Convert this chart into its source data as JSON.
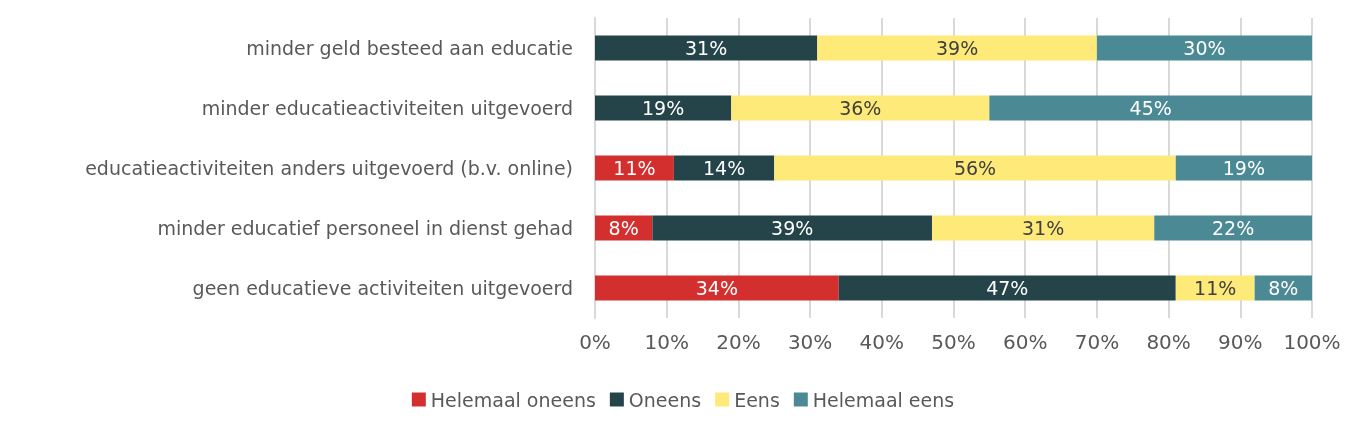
{
  "chart_data": {
    "type": "bar",
    "orientation": "horizontal",
    "stacked": true,
    "categories": [
      "minder geld besteed aan educatie",
      "minder educatieactiviteiten uitgevoerd",
      "educatieactiviteiten anders uitgevoerd (b.v. online)",
      "minder educatief personeel in dienst gehad",
      "geen educatieve activiteiten uitgevoerd"
    ],
    "series": [
      {
        "name": "Helemaal oneens",
        "color": "#d32f2f",
        "values": [
          null,
          null,
          11,
          8,
          34
        ],
        "value_labels": [
          null,
          null,
          "11%",
          "8%",
          "34%"
        ]
      },
      {
        "name": "Oneens",
        "color": "#24444a",
        "values": [
          31,
          19,
          14,
          39,
          47
        ],
        "value_labels": [
          "31%",
          "19%",
          "14%",
          "39%",
          "47%"
        ]
      },
      {
        "name": "Eens",
        "color": "#fdea79",
        "values": [
          39,
          36,
          56,
          31,
          11
        ],
        "value_labels": [
          "39%",
          "36%",
          "56%",
          "31%",
          "11%"
        ]
      },
      {
        "name": "Helemaal eens",
        "color": "#4b8a94",
        "values": [
          30,
          45,
          19,
          22,
          8
        ],
        "value_labels": [
          "30%",
          "45%",
          "19%",
          "22%",
          "8%"
        ]
      }
    ],
    "xlim": [
      0,
      100
    ],
    "xticks": [
      {
        "value": 0,
        "label": "0%"
      },
      {
        "value": 10,
        "label": "10%"
      },
      {
        "value": 20,
        "label": "20%"
      },
      {
        "value": 30,
        "label": "30%"
      },
      {
        "value": 40,
        "label": "40%"
      },
      {
        "value": 50,
        "label": "50%"
      },
      {
        "value": 60,
        "label": "60%"
      },
      {
        "value": 70,
        "label": "70%"
      },
      {
        "value": 80,
        "label": "80%"
      },
      {
        "value": 90,
        "label": "90%"
      },
      {
        "value": 100,
        "label": "100%"
      }
    ],
    "grid": "x",
    "legend": "bottom"
  }
}
